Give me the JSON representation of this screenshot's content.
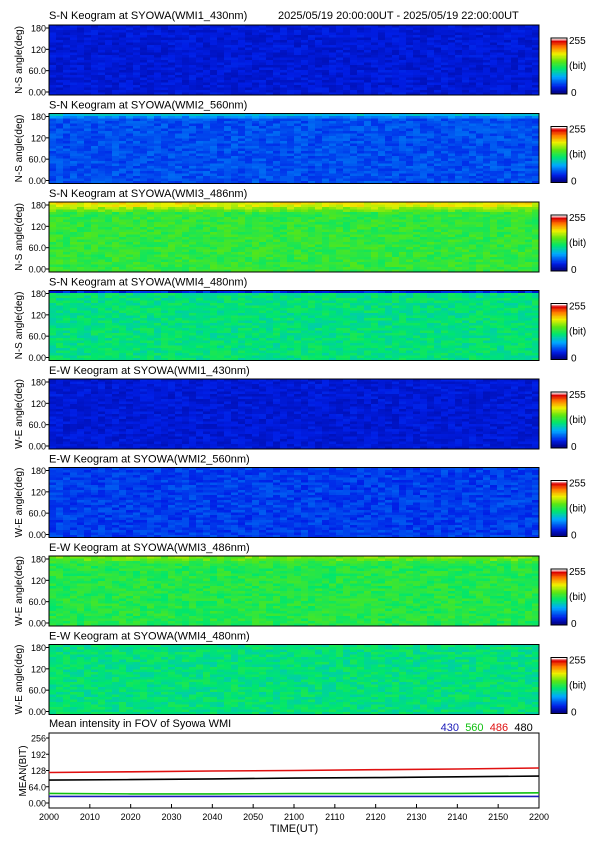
{
  "header": {
    "time_range": "2025/05/19 20:00:00UT - 2025/05/19 22:00:00UT"
  },
  "colorbar": {
    "max_label": "255",
    "unit_label": "(bit)",
    "min_label": "0"
  },
  "keograms": [
    {
      "title": "S-N Keogram at SYOWA(WMI1_430nm)",
      "ylabel": "N-S angle(deg)",
      "yticks": [
        "180",
        "120",
        "60.0",
        "0.00"
      ],
      "base_level": 0.1,
      "top_level": 0.06,
      "top_band_deg": 0,
      "noise": 0.03
    },
    {
      "title": "S-N Keogram at SYOWA(WMI2_560nm)",
      "ylabel": "N-S angle(deg)",
      "yticks": [
        "180",
        "120",
        "60.0",
        "0.00"
      ],
      "base_level": 0.18,
      "top_level": 0.34,
      "top_band_deg": 14,
      "noise": 0.04
    },
    {
      "title": "S-N Keogram at SYOWA(WMI3_486nm)",
      "ylabel": "N-S angle(deg)",
      "yticks": [
        "180",
        "120",
        "60.0",
        "0.00"
      ],
      "base_level": 0.52,
      "top_level": 0.72,
      "top_band_deg": 28,
      "noise": 0.05
    },
    {
      "title": "S-N Keogram at SYOWA(WMI4_480nm)",
      "ylabel": "N-S angle(deg)",
      "yticks": [
        "180",
        "120",
        "60.0",
        "0.00"
      ],
      "base_level": 0.44,
      "top_level": 0.06,
      "top_band_deg": 8,
      "noise": 0.05
    },
    {
      "title": "E-W Keogram at SYOWA(WMI1_430nm)",
      "ylabel": "W-E angle(deg)",
      "yticks": [
        "180",
        "120",
        "60.0",
        "0.00"
      ],
      "base_level": 0.1,
      "top_level": 0.08,
      "top_band_deg": 0,
      "noise": 0.03
    },
    {
      "title": "E-W Keogram at SYOWA(WMI2_560nm)",
      "ylabel": "W-E angle(deg)",
      "yticks": [
        "180",
        "120",
        "60.0",
        "0.00"
      ],
      "base_level": 0.16,
      "top_level": 0.16,
      "top_band_deg": 0,
      "noise": 0.04
    },
    {
      "title": "E-W Keogram at SYOWA(WMI3_486nm)",
      "ylabel": "W-E angle(deg)",
      "yticks": [
        "180",
        "120",
        "60.0",
        "0.00"
      ],
      "base_level": 0.5,
      "top_level": 0.6,
      "top_band_deg": 20,
      "noise": 0.05
    },
    {
      "title": "E-W Keogram at SYOWA(WMI4_480nm)",
      "ylabel": "W-E angle(deg)",
      "yticks": [
        "180",
        "120",
        "60.0",
        "0.00"
      ],
      "base_level": 0.44,
      "top_level": 0.44,
      "top_band_deg": 0,
      "noise": 0.05
    }
  ],
  "chart_data": {
    "type": "line",
    "title": "Mean intensity in FOV of Syowa WMI",
    "xlabel": "TIME(UT)",
    "ylabel": "MEAN(BIT)",
    "ylim": [
      0,
      256
    ],
    "yticks": [
      "256",
      "192",
      "128",
      "64.0",
      "0.00"
    ],
    "xlim": [
      2000,
      2200
    ],
    "x_ticks": [
      "2000",
      "2010",
      "2020",
      "2030",
      "2040",
      "2050",
      "2100",
      "2110",
      "2120",
      "2130",
      "2140",
      "2150",
      "2200"
    ],
    "x": [
      "20:00",
      "20:20",
      "20:40",
      "21:00",
      "21:20",
      "21:40",
      "22:00"
    ],
    "series": [
      {
        "name": "430",
        "color": "#1a1ab8",
        "values": [
          26,
          26,
          26,
          26,
          26,
          26,
          26
        ]
      },
      {
        "name": "560",
        "color": "#10c010",
        "values": [
          38,
          36,
          36,
          37,
          37,
          38,
          40
        ]
      },
      {
        "name": "486",
        "color": "#e01010",
        "values": [
          120,
          123,
          126,
          128,
          131,
          134,
          138
        ]
      },
      {
        "name": "480",
        "color": "#000000",
        "values": [
          90,
          92,
          95,
          98,
          100,
          103,
          106
        ]
      }
    ]
  }
}
